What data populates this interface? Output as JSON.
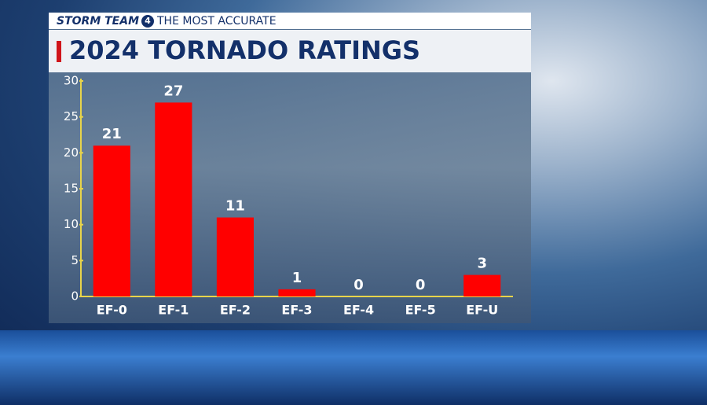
{
  "chart_data": {
    "type": "bar",
    "brand": "STORM TEAM",
    "brand_number": "4",
    "tagline": "THE MOST ACCURATE",
    "title": "2024 TORNADO RATINGS",
    "categories": [
      "EF-0",
      "EF-1",
      "EF-2",
      "EF-3",
      "EF-4",
      "EF-5",
      "EF-U"
    ],
    "values": [
      21,
      27,
      11,
      1,
      0,
      0,
      3
    ],
    "color": "#ff0000",
    "ylim": [
      0,
      30
    ],
    "yticks": [
      0,
      5,
      10,
      15,
      20,
      25,
      30
    ],
    "grid": false
  }
}
